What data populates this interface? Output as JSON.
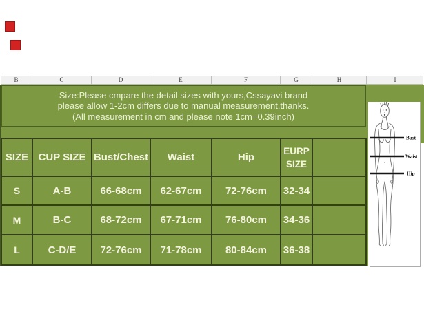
{
  "spreadsheet": {
    "column_headers": [
      "B",
      "C",
      "D",
      "E",
      "F",
      "G",
      "H",
      "I"
    ]
  },
  "banner": {
    "line1": "Size:Please cmpare the detail sizes with yours,Cssayavi brand",
    "line2": "please allow 1-2cm differs due to manual measurement,thanks.",
    "line3": "(All measurement in cm and please note 1cm=0.39inch)"
  },
  "size_table": {
    "headers": [
      "SIZE",
      "CUP SIZE",
      "Bust/Chest",
      "Waist",
      "Hip",
      "EURP SIZE",
      ""
    ],
    "rows": [
      [
        "S",
        "A-B",
        "66-68cm",
        "62-67cm",
        "72-76cm",
        "32-34",
        ""
      ],
      [
        "M",
        "B-C",
        "68-72cm",
        "67-71cm",
        "76-80cm",
        "34-36",
        ""
      ],
      [
        "L",
        "C-D/E",
        "72-76cm",
        "71-78cm",
        "80-84cm",
        "36-38",
        ""
      ]
    ]
  },
  "figure": {
    "labels": {
      "bust": "Bust",
      "waist": "Waist",
      "hip": "Hip"
    }
  },
  "colors": {
    "olive_green": "#7d9a42",
    "table_border": "#333f17",
    "banner_border": "#49601f",
    "text_cream": "#f4f3de",
    "red_marker": "#d32222"
  }
}
